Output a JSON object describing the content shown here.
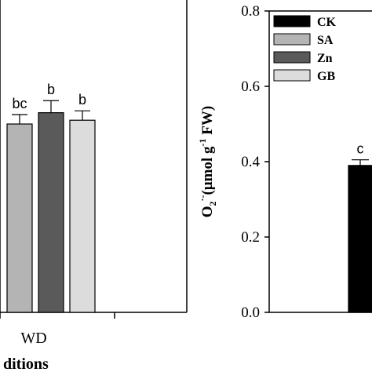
{
  "chart_data": [
    {
      "type": "bar",
      "panel": "left (cropped)",
      "categories": [
        "WD"
      ],
      "xlabel": "ditions",
      "series": [
        {
          "name": "SA",
          "values": [
            0.5
          ],
          "errors": [
            0.025
          ],
          "labels": [
            "bc"
          ],
          "color": "#b4b4b4"
        },
        {
          "name": "Zn",
          "values": [
            0.53
          ],
          "errors": [
            0.032
          ],
          "labels": [
            "b"
          ],
          "color": "#5a5a5a"
        },
        {
          "name": "GB",
          "values": [
            0.51
          ],
          "errors": [
            0.025
          ],
          "labels": [
            "b"
          ],
          "color": "#dcdcdc"
        }
      ],
      "ylim": [
        0,
        0.8
      ]
    },
    {
      "type": "bar",
      "panel": "right (cropped)",
      "ylabel": {
        "base": "O",
        "sub": "2",
        "sup": "·-",
        "mid": "(μmol g",
        "sup2": "-1",
        "tail": " FW)"
      },
      "ylim": [
        0,
        0.8
      ],
      "yticks": [
        "0.0",
        "0.2",
        "0.4",
        "0.6",
        "0.8"
      ],
      "series": [
        {
          "name": "CK",
          "values": [
            0.39
          ],
          "errors": [
            0.015
          ],
          "labels": [
            "c"
          ],
          "color": "#000000"
        }
      ],
      "legend": {
        "placement": "top-left",
        "entries": [
          {
            "label": "CK",
            "color": "#000000"
          },
          {
            "label": "SA",
            "color": "#b4b4b4"
          },
          {
            "label": "Zn",
            "color": "#5a5a5a"
          },
          {
            "label": "GB",
            "color": "#dcdcdc"
          }
        ]
      }
    }
  ]
}
